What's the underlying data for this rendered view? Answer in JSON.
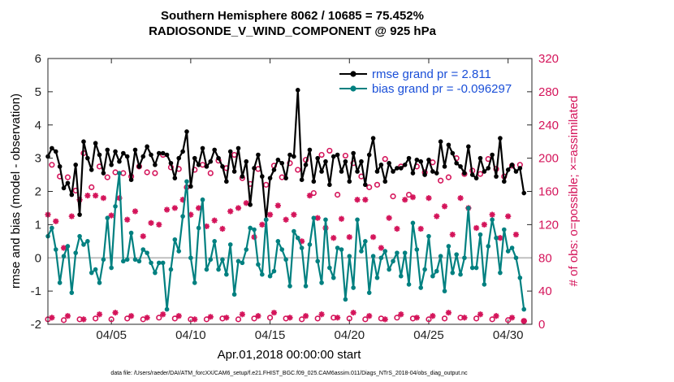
{
  "chart_data": {
    "type": "line",
    "title": "Southern Hemisphere 8062 / 10685 = 75.452%",
    "subtitle": "RADIOSONDE_V_WIND_COMPONENT @ 925 hPa",
    "xlabel": "Apr.01,2018 00:00:00 start",
    "ylabel": "rmse and bias (model - observation)",
    "ylabel_right": "# of obs: o=possible; ×=assimilated",
    "xlim": [
      1,
      31.5
    ],
    "ylim": [
      -2,
      6
    ],
    "ylim_right": [
      0,
      320
    ],
    "x_ticks": [
      5,
      10,
      15,
      20,
      25,
      30
    ],
    "x_tick_labels": [
      "04/05",
      "04/10",
      "04/15",
      "04/20",
      "04/25",
      "04/30"
    ],
    "y_ticks": [
      -2,
      -1,
      0,
      1,
      2,
      3,
      4,
      5,
      6
    ],
    "y_ticks_right": [
      0,
      40,
      80,
      120,
      160,
      200,
      240,
      280,
      320
    ],
    "zero_line": 0,
    "footer": "data file: /Users/raeder/DAI/ATM_forcXX/CAM6_setup/f.e21.FHIST_BGC.f09_025.CAM6assim.011/Diags_NTrS_2018-04/obs_diag_output.nc",
    "series": [
      {
        "name": "rmse grand pr = 2.811",
        "axis": "left",
        "color": "#000000",
        "marker": "filled-circle",
        "x": [
          1.0,
          1.25,
          1.5,
          1.75,
          2.0,
          2.25,
          2.5,
          2.75,
          3.0,
          3.25,
          3.5,
          3.75,
          4.0,
          4.25,
          4.5,
          4.75,
          5.0,
          5.25,
          5.5,
          5.75,
          6.0,
          6.25,
          6.5,
          6.75,
          7.0,
          7.25,
          7.5,
          7.75,
          8.0,
          8.25,
          8.5,
          8.75,
          9.0,
          9.25,
          9.5,
          9.75,
          10.0,
          10.25,
          10.5,
          10.75,
          11.0,
          11.25,
          11.5,
          11.75,
          12.0,
          12.25,
          12.5,
          12.75,
          13.0,
          13.25,
          13.5,
          13.75,
          14.0,
          14.25,
          14.5,
          14.75,
          15.0,
          15.25,
          15.5,
          15.75,
          16.0,
          16.25,
          16.5,
          16.75,
          17.0,
          17.25,
          17.5,
          17.75,
          18.0,
          18.25,
          18.5,
          18.75,
          19.0,
          19.25,
          19.5,
          19.75,
          20.0,
          20.25,
          20.5,
          20.75,
          21.0,
          21.25,
          21.5,
          21.75,
          22.0,
          22.25,
          22.5,
          22.75,
          23.0,
          23.25,
          23.5,
          23.75,
          24.0,
          24.25,
          24.5,
          24.75,
          25.0,
          25.25,
          25.5,
          25.75,
          26.0,
          26.25,
          26.5,
          26.75,
          27.0,
          27.25,
          27.5,
          27.75,
          28.0,
          28.25,
          28.5,
          28.75,
          29.0,
          29.25,
          29.5,
          29.75,
          30.0,
          30.25,
          30.5,
          30.75,
          31.0
        ],
        "values": [
          3.05,
          3.3,
          3.2,
          2.75,
          2.1,
          2.25,
          1.9,
          2.8,
          1.3,
          3.5,
          3.0,
          2.65,
          3.45,
          3.1,
          2.55,
          3.25,
          2.8,
          3.2,
          2.9,
          3.15,
          3.05,
          2.35,
          3.25,
          2.75,
          3.05,
          3.35,
          3.1,
          2.8,
          3.15,
          3.15,
          3.1,
          2.85,
          2.4,
          3.0,
          3.2,
          3.8,
          2.15,
          3.0,
          2.8,
          3.3,
          2.75,
          2.9,
          3.25,
          3.0,
          2.75,
          2.3,
          3.2,
          2.6,
          3.3,
          2.45,
          2.9,
          1.6,
          2.7,
          3.1,
          2.45,
          1.15,
          2.4,
          2.65,
          2.95,
          2.85,
          2.4,
          3.1,
          3.05,
          5.05,
          2.35,
          2.8,
          3.25,
          2.3,
          3.0,
          2.6,
          2.9,
          2.2,
          3.05,
          3.1,
          2.6,
          2.9,
          2.3,
          3.15,
          2.6,
          2.9,
          2.2,
          3.1,
          3.6,
          2.6,
          2.8,
          2.3,
          2.85,
          2.6,
          2.7,
          2.7,
          2.8,
          3.0,
          2.55,
          2.95,
          2.9,
          2.5,
          2.95,
          2.6,
          2.55,
          3.5,
          2.75,
          3.4,
          3.15,
          2.85,
          2.75,
          2.55,
          3.35,
          2.5,
          2.4,
          3.0,
          2.6,
          2.7,
          3.1,
          2.45,
          3.6,
          2.3,
          2.65,
          2.8,
          2.6,
          2.7,
          1.95
        ]
      },
      {
        "name": "bias grand pr = -0.096297",
        "axis": "left",
        "color": "#008080",
        "marker": "filled-circle",
        "x": [
          1.0,
          1.25,
          1.5,
          1.75,
          2.0,
          2.25,
          2.5,
          2.75,
          3.0,
          3.25,
          3.5,
          3.75,
          4.0,
          4.25,
          4.5,
          4.75,
          5.0,
          5.25,
          5.5,
          5.75,
          6.0,
          6.25,
          6.5,
          6.75,
          7.0,
          7.25,
          7.5,
          7.75,
          8.0,
          8.25,
          8.5,
          8.75,
          9.0,
          9.25,
          9.5,
          9.75,
          10.0,
          10.25,
          10.5,
          10.75,
          11.0,
          11.25,
          11.5,
          11.75,
          12.0,
          12.25,
          12.5,
          12.75,
          13.0,
          13.25,
          13.5,
          13.75,
          14.0,
          14.25,
          14.5,
          14.75,
          15.0,
          15.25,
          15.5,
          15.75,
          16.0,
          16.25,
          16.5,
          16.75,
          17.0,
          17.25,
          17.5,
          17.75,
          18.0,
          18.25,
          18.5,
          18.75,
          19.0,
          19.25,
          19.5,
          19.75,
          20.0,
          20.25,
          20.5,
          20.75,
          21.0,
          21.25,
          21.5,
          21.75,
          22.0,
          22.25,
          22.5,
          22.75,
          23.0,
          23.25,
          23.5,
          23.75,
          24.0,
          24.25,
          24.5,
          24.75,
          25.0,
          25.25,
          25.5,
          25.75,
          26.0,
          26.25,
          26.5,
          26.75,
          27.0,
          27.25,
          27.5,
          27.75,
          28.0,
          28.25,
          28.5,
          28.75,
          29.0,
          29.25,
          29.5,
          29.75,
          30.0,
          30.25,
          30.5,
          30.75,
          31.0
        ],
        "values": [
          0.65,
          0.9,
          0.25,
          -0.75,
          0.05,
          0.35,
          -1.05,
          0.15,
          0.65,
          0.4,
          0.5,
          -0.45,
          -0.35,
          -0.75,
          -0.05,
          1.2,
          -0.3,
          1.55,
          2.55,
          -0.1,
          -0.05,
          0.75,
          -0.05,
          -0.1,
          0.25,
          0.15,
          -0.15,
          -0.45,
          -0.15,
          -0.15,
          -1.55,
          -0.35,
          0.55,
          0.2,
          1.25,
          2.3,
          0.0,
          -0.75,
          0.9,
          1.75,
          -0.35,
          -0.05,
          0.5,
          -0.35,
          -0.05,
          -0.5,
          0.4,
          -1.1,
          -0.1,
          -0.15,
          0.25,
          0.9,
          0.85,
          -0.2,
          -0.5,
          1.15,
          -0.55,
          -0.4,
          0.5,
          0.25,
          -0.05,
          -0.85,
          0.8,
          0.6,
          0.3,
          -0.85,
          0.4,
          1.2,
          -0.1,
          -0.75,
          1.15,
          -0.3,
          -0.6,
          0.3,
          0.25,
          -1.25,
          0.05,
          -0.9,
          1.15,
          0.2,
          0.5,
          -1.05,
          0.05,
          -0.6,
          0.0,
          0.2,
          -0.35,
          -0.1,
          0.15,
          -0.55,
          0.15,
          -0.8,
          1.05,
          0.25,
          -0.9,
          -0.35,
          0.65,
          -0.55,
          -0.4,
          0.05,
          -1.0,
          0.35,
          -0.45,
          0.1,
          -0.5,
          0.0,
          1.5,
          -0.3,
          -0.3,
          0.7,
          -0.8,
          0.35,
          1.15,
          0.6,
          -0.45,
          0.85,
          0.2,
          0.3,
          0.0,
          -0.6,
          -1.55
        ]
      },
      {
        "name": "possible obs",
        "axis": "right",
        "color": "#d4145a",
        "marker": "open-circle",
        "x": [
          1.25,
          1.75,
          2.25,
          2.75,
          3.25,
          3.75,
          4.25,
          4.75,
          5.25,
          5.75,
          6.25,
          6.75,
          7.25,
          7.75,
          8.25,
          8.75,
          9.25,
          9.75,
          10.25,
          10.75,
          11.25,
          11.75,
          12.25,
          12.75,
          13.25,
          13.75,
          14.25,
          14.75,
          15.25,
          15.75,
          16.25,
          16.75,
          17.25,
          17.75,
          18.25,
          18.75,
          19.25,
          19.75,
          20.25,
          20.75,
          21.25,
          21.75,
          22.25,
          22.75,
          23.25,
          23.75,
          24.25,
          24.75,
          25.25,
          25.75,
          26.25,
          26.75,
          27.25,
          27.75,
          28.25,
          28.75,
          29.25,
          29.75,
          30.25,
          30.75,
          1.0,
          2.0,
          3.0,
          4.0,
          5.0,
          6.0,
          7.0,
          8.0,
          9.0,
          10.0,
          11.0,
          12.0,
          13.0,
          14.0,
          15.0,
          16.0,
          17.0,
          18.0,
          19.0,
          20.0,
          21.0,
          22.0,
          23.0,
          24.0,
          25.0,
          26.0,
          27.0,
          28.0,
          29.0,
          30.0,
          31.0
        ],
        "values": [
          192,
          178,
          177,
          161,
          206,
          165,
          190,
          177,
          183,
          182,
          178,
          190,
          183,
          182,
          204,
          189,
          187,
          165,
          186,
          192,
          182,
          197,
          188,
          204,
          176,
          169,
          187,
          168,
          191,
          177,
          194,
          186,
          198,
          158,
          204,
          209,
          156,
          203,
          194,
          178,
          165,
          168,
          199,
          154,
          190,
          156,
          190,
          183,
          195,
          173,
          177,
          200,
          181,
          185,
          181,
          199,
          187,
          178,
          191,
          192,
          6,
          5,
          6,
          7,
          6,
          7,
          6,
          8,
          7,
          6,
          6,
          7,
          6,
          7,
          8,
          7,
          6,
          7,
          8,
          7,
          6,
          7,
          8,
          7,
          6,
          7,
          8,
          7,
          6,
          5,
          4
        ]
      },
      {
        "name": "assimilated obs",
        "axis": "right",
        "color": "#d4145a",
        "marker": "star",
        "x": [
          1.0,
          1.5,
          2.0,
          2.5,
          3.0,
          3.5,
          4.0,
          4.5,
          5.0,
          5.5,
          6.0,
          6.5,
          7.0,
          7.5,
          8.0,
          8.5,
          9.0,
          9.5,
          10.0,
          10.5,
          11.0,
          11.5,
          12.0,
          12.5,
          13.0,
          13.5,
          14.0,
          14.5,
          15.0,
          15.5,
          16.0,
          16.5,
          17.0,
          17.5,
          18.0,
          18.5,
          19.0,
          19.5,
          20.0,
          20.5,
          21.0,
          21.5,
          22.0,
          22.5,
          23.0,
          23.5,
          24.0,
          24.5,
          25.0,
          25.5,
          26.0,
          26.5,
          27.0,
          27.5,
          28.0,
          28.5,
          29.0,
          29.5,
          30.0,
          30.5,
          31.0,
          1.25,
          2.25,
          3.25,
          4.25,
          5.25,
          6.25,
          7.25,
          8.25,
          9.25,
          10.25,
          11.25,
          12.25,
          13.25,
          14.25,
          15.25,
          16.25,
          17.25,
          18.25,
          19.25,
          20.25,
          21.25,
          22.25,
          23.25,
          24.25,
          25.25,
          26.25,
          27.25,
          28.25,
          29.25,
          30.25
        ],
        "values": [
          132,
          124,
          92,
          130,
          150,
          155,
          155,
          152,
          131,
          152,
          126,
          136,
          106,
          122,
          120,
          138,
          140,
          150,
          132,
          140,
          118,
          125,
          115,
          136,
          140,
          146,
          105,
          120,
          132,
          143,
          126,
          132,
          100,
          155,
          128,
          116,
          104,
          127,
          105,
          150,
          150,
          105,
          92,
          128,
          115,
          150,
          153,
          115,
          152,
          130,
          142,
          108,
          152,
          140,
          116,
          120,
          132,
          104,
          130,
          108,
          4,
          8,
          10,
          6,
          12,
          14,
          10,
          8,
          12,
          10,
          6,
          9,
          8,
          12,
          10,
          14,
          8,
          10,
          12,
          8,
          14,
          10,
          6,
          12,
          8,
          10,
          14,
          8,
          12,
          10,
          8
        ]
      }
    ]
  }
}
